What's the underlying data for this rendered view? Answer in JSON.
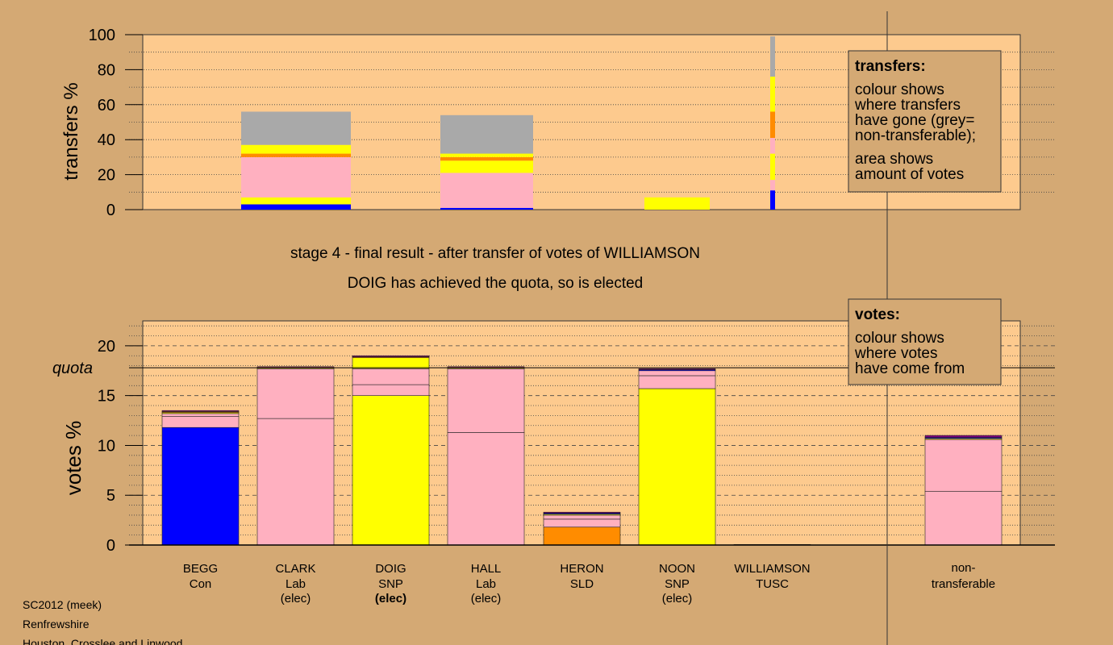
{
  "colors": {
    "background": "#d4a974",
    "panel": "#fdca8e",
    "con": "#0000ff",
    "lab": "#ffb0c0",
    "snp": "#ffff00",
    "sld": "#ff8c00",
    "tusc": "#800080",
    "nontransferable": "#a9a9a9"
  },
  "headline": {
    "stage": "stage 4 - final result - after transfer of votes of WILLIAMSON",
    "result": "DOIG has achieved the quota, so is elected"
  },
  "footer": [
    "SC2012 (meek)",
    "Renfrewshire",
    "Houston, Crosslee and Linwood"
  ],
  "chart_data": [
    {
      "type": "bar",
      "title": "transfers",
      "ylabel": "transfers %",
      "ylim": [
        0,
        100
      ],
      "yticks": [
        "0",
        "20",
        "40",
        "60",
        "80",
        "100"
      ],
      "grid": "dotted horizontal",
      "legend": {
        "placement": "top-right",
        "title": "transfers:",
        "lines1": [
          "colour shows",
          "where transfers",
          "have gone (grey=",
          "non-transferable);"
        ],
        "lines2": [
          "area shows",
          "amount of votes"
        ]
      },
      "bars": [
        {
          "slot": "BEGG",
          "segments": [
            {
              "party": "con",
              "value": 3
            },
            {
              "party": "snp",
              "value": 4
            },
            {
              "party": "lab",
              "value": 23
            },
            {
              "party": "sld",
              "value": 2
            },
            {
              "party": "snp",
              "value": 5
            },
            {
              "party": "nontransferable",
              "value": 19
            }
          ]
        },
        {
          "slot": "DOIG",
          "segments": [
            {
              "party": "con",
              "value": 1
            },
            {
              "party": "lab",
              "value": 20
            },
            {
              "party": "snp",
              "value": 7
            },
            {
              "party": "sld",
              "value": 2
            },
            {
              "party": "snp",
              "value": 2
            },
            {
              "party": "nontransferable",
              "value": 22
            }
          ]
        },
        {
          "slot": "HERON",
          "segments": [
            {
              "party": "snp",
              "value": 7
            }
          ]
        },
        {
          "slot": "WILLIAMSON",
          "thin": true,
          "segments": [
            {
              "party": "con",
              "value": 11
            },
            {
              "party": "lab",
              "value": 6
            },
            {
              "party": "snp",
              "value": 15
            },
            {
              "party": "lab",
              "value": 9
            },
            {
              "party": "sld",
              "value": 15
            },
            {
              "party": "snp",
              "value": 20
            },
            {
              "party": "nontransferable",
              "value": 23
            }
          ]
        }
      ]
    },
    {
      "type": "bar",
      "title": "votes",
      "ylabel": "votes %",
      "ylim": [
        0,
        22.5
      ],
      "yticks": [
        "0",
        "5",
        "10",
        "15",
        "20"
      ],
      "quota": 17.8,
      "quota_label": "quota",
      "grid": "dashed major, dotted minor",
      "legend": {
        "placement": "top-right",
        "title": "votes:",
        "lines1": [
          "colour shows",
          "where votes",
          "have come from"
        ]
      },
      "categories": [
        {
          "name": "BEGG",
          "party_label": "Con",
          "status": "",
          "bold_status": false,
          "segments": [
            {
              "party": "con",
              "value": 11.8
            },
            {
              "party": "lab",
              "value": 1.1
            },
            {
              "party": "lab",
              "value": 0.3
            },
            {
              "party": "snp",
              "value": 0.1
            },
            {
              "party": "sld",
              "value": 0.1
            },
            {
              "party": "tusc",
              "value": 0.1
            }
          ]
        },
        {
          "name": "CLARK",
          "party_label": "Lab",
          "status": "(elec)",
          "bold_status": false,
          "segments": [
            {
              "party": "lab",
              "value": 12.7
            },
            {
              "party": "lab",
              "value": 5.0
            },
            {
              "party": "snp",
              "value": 0.1
            },
            {
              "party": "tusc",
              "value": 0.1
            }
          ]
        },
        {
          "name": "DOIG",
          "party_label": "SNP",
          "status": "(elec)",
          "bold_status": true,
          "segments": [
            {
              "party": "snp",
              "value": 15.0
            },
            {
              "party": "lab",
              "value": 1.1
            },
            {
              "party": "lab",
              "value": 1.6
            },
            {
              "party": "snp",
              "value": 1.1
            },
            {
              "party": "sld",
              "value": 0.1
            },
            {
              "party": "tusc",
              "value": 0.1
            }
          ]
        },
        {
          "name": "HALL",
          "party_label": "Lab",
          "status": "(elec)",
          "bold_status": false,
          "segments": [
            {
              "party": "lab",
              "value": 11.3
            },
            {
              "party": "lab",
              "value": 6.4
            },
            {
              "party": "snp",
              "value": 0.1
            },
            {
              "party": "tusc",
              "value": 0.1
            }
          ]
        },
        {
          "name": "HERON",
          "party_label": "SLD",
          "status": "",
          "bold_status": false,
          "segments": [
            {
              "party": "sld",
              "value": 1.8
            },
            {
              "party": "lab",
              "value": 0.8
            },
            {
              "party": "lab",
              "value": 0.4
            },
            {
              "party": "snp",
              "value": 0.1
            },
            {
              "party": "con",
              "value": 0.1
            },
            {
              "party": "tusc",
              "value": 0.1
            }
          ]
        },
        {
          "name": "NOON",
          "party_label": "SNP",
          "status": "(elec)",
          "bold_status": false,
          "segments": [
            {
              "party": "snp",
              "value": 15.7
            },
            {
              "party": "lab",
              "value": 1.3
            },
            {
              "party": "lab",
              "value": 0.5
            },
            {
              "party": "con",
              "value": 0.1
            },
            {
              "party": "tusc",
              "value": 0.1
            }
          ]
        },
        {
          "name": "WILLIAMSON",
          "party_label": "TUSC",
          "status": "",
          "bold_status": false,
          "segments": [
            {
              "party": "tusc",
              "value": 0.05
            }
          ]
        },
        {
          "name": "non-",
          "party_label": "transferable",
          "status": "",
          "bold_status": false,
          "segments": [
            {
              "party": "lab",
              "value": 5.4
            },
            {
              "party": "lab",
              "value": 5.2
            },
            {
              "party": "snp",
              "value": 0.1
            },
            {
              "party": "con",
              "value": 0.1
            },
            {
              "party": "tusc",
              "value": 0.2
            }
          ]
        }
      ]
    }
  ]
}
